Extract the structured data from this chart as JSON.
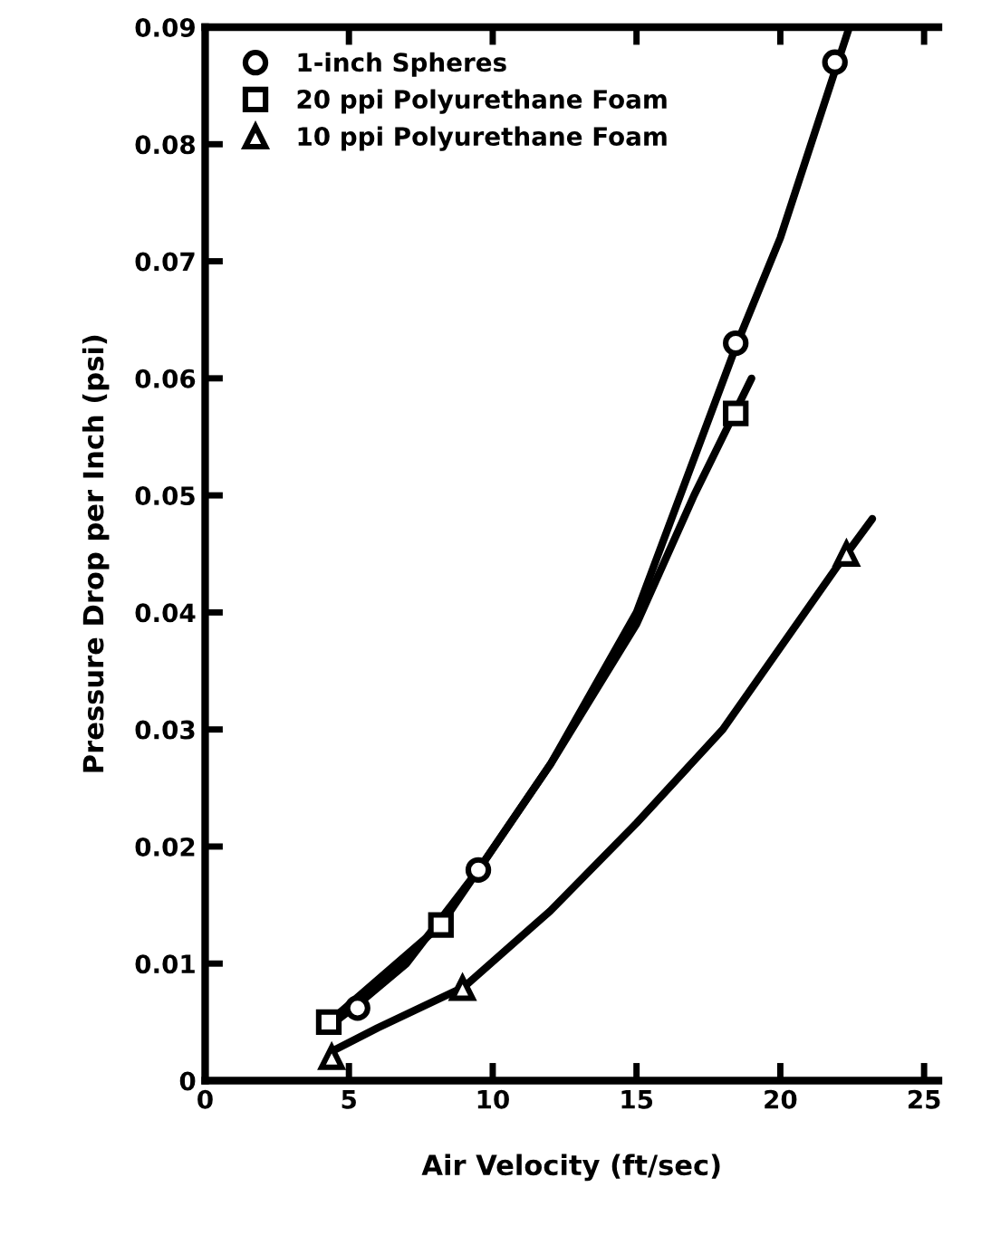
{
  "chart_data": {
    "type": "scatter",
    "xlabel": "Air Velocity (ft/sec)",
    "ylabel": "Pressure Drop per Inch (psi)",
    "xlim": [
      0,
      25.5
    ],
    "xticks": [
      0,
      5,
      10,
      15,
      20,
      25
    ],
    "ylim": [
      0,
      0.09
    ],
    "yticks": [
      0,
      0.01,
      0.02,
      0.03,
      0.04,
      0.05,
      0.06,
      0.07,
      0.08,
      0.09
    ],
    "grid": false,
    "legend": "top left",
    "series": [
      {
        "name": "1-inch Spheres",
        "marker": "circle",
        "color": "#000000",
        "x": [
          5.3,
          9.5,
          18.45,
          21.9
        ],
        "values": [
          0.0062,
          0.018,
          0.063,
          0.087
        ]
      },
      {
        "name": "20 ppi Polyurethane Foam",
        "marker": "square",
        "color": "#000000",
        "x": [
          4.3,
          8.2,
          18.45
        ],
        "values": [
          0.005,
          0.0133,
          0.057
        ]
      },
      {
        "name": "10 ppi Polyurethane Foam",
        "marker": "triangle",
        "color": "#000000",
        "x": [
          4.4,
          8.95,
          22.3
        ],
        "values": [
          0.002,
          0.0079,
          0.045
        ]
      },
      {
        "type": "line",
        "marker": "none",
        "color": "#000000",
        "x": [
          4.5,
          5.3,
          7,
          9.5,
          12,
          15,
          18.5,
          20,
          22,
          22.4
        ],
        "values": [
          0.005,
          0.0065,
          0.01,
          0.018,
          0.027,
          0.04,
          0.063,
          0.072,
          0.087,
          0.09
        ]
      },
      {
        "type": "line",
        "marker": "none",
        "color": "#000000",
        "x": [
          4.3,
          8.2,
          9.5,
          12,
          15,
          17,
          19
        ],
        "values": [
          0.005,
          0.0133,
          0.018,
          0.027,
          0.039,
          0.05,
          0.06
        ]
      },
      {
        "type": "line",
        "marker": "none",
        "color": "#000000",
        "x": [
          4.4,
          6,
          9,
          12,
          15,
          18,
          22,
          23.2
        ],
        "values": [
          0.0025,
          0.0045,
          0.008,
          0.0145,
          0.022,
          0.03,
          0.044,
          0.048
        ]
      }
    ]
  }
}
